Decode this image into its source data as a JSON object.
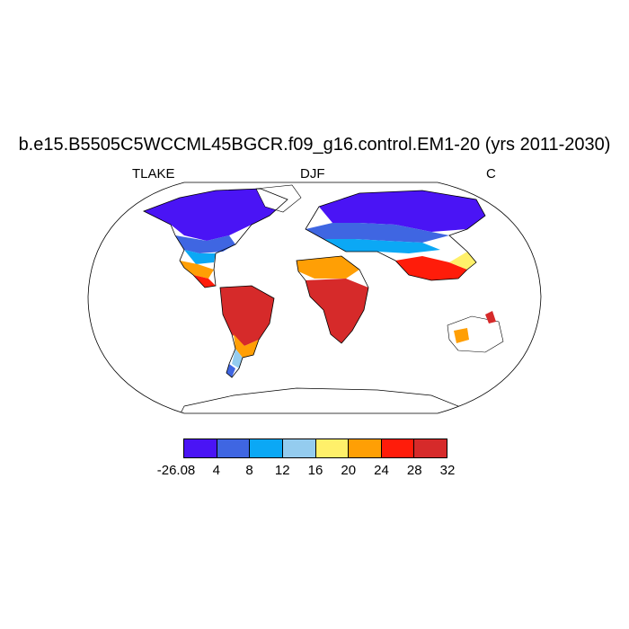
{
  "title": "b.e15.B5505C5WCCML45BGCR.f09_g16.control.EM1-20 (yrs 2011-2030)",
  "left_label": "TLAKE",
  "center_label": "DJF",
  "right_label": "C",
  "colorbar": {
    "colors": [
      "#4a14f5",
      "#3f66e2",
      "#0ba8f5",
      "#94ccef",
      "#fff06a",
      "#ff9f05",
      "#ff1c0a",
      "#d62a2a"
    ],
    "tick_labels": [
      "-26.08",
      "4",
      "8",
      "12",
      "16",
      "20",
      "24",
      "28",
      "32"
    ]
  },
  "legend_bins": [
    {
      "range": "-26.08–4",
      "color": "#4a14f5"
    },
    {
      "range": "4–8",
      "color": "#3f66e2"
    },
    {
      "range": "8–12",
      "color": "#0ba8f5"
    },
    {
      "range": "12–16",
      "color": "#94ccef"
    },
    {
      "range": "16–20",
      "color": "#fff06a"
    },
    {
      "range": "20–24",
      "color": "#ff9f05"
    },
    {
      "range": "24–28",
      "color": "#ff1c0a"
    },
    {
      "range": "28–32",
      "color": "#d62a2a"
    }
  ]
}
